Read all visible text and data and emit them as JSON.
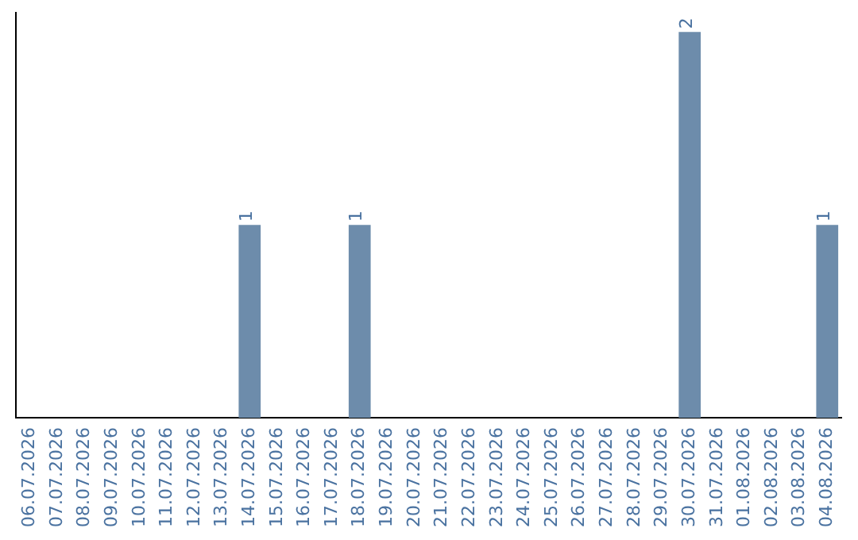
{
  "chart_data": {
    "type": "bar",
    "categories": [
      "06.07.2026",
      "07.07.2026",
      "08.07.2026",
      "09.07.2026",
      "10.07.2026",
      "11.07.2026",
      "12.07.2026",
      "13.07.2026",
      "14.07.2026",
      "15.07.2026",
      "16.07.2026",
      "17.07.2026",
      "18.07.2026",
      "19.07.2026",
      "20.07.2026",
      "21.07.2026",
      "22.07.2026",
      "23.07.2026",
      "24.07.2026",
      "25.07.2026",
      "26.07.2026",
      "27.07.2026",
      "28.07.2026",
      "29.07.2026",
      "30.07.2026",
      "31.07.2026",
      "01.08.2026",
      "02.08.2026",
      "03.08.2026",
      "04.08.2026"
    ],
    "values": [
      0,
      0,
      0,
      0,
      0,
      0,
      0,
      0,
      1,
      0,
      0,
      0,
      1,
      0,
      0,
      0,
      0,
      0,
      0,
      0,
      0,
      0,
      0,
      0,
      2,
      0,
      0,
      0,
      0,
      1
    ],
    "value_labels": [
      null,
      null,
      null,
      null,
      null,
      null,
      null,
      null,
      "1",
      null,
      null,
      null,
      "1",
      null,
      null,
      null,
      null,
      null,
      null,
      null,
      null,
      null,
      null,
      null,
      "2",
      null,
      null,
      null,
      null,
      "1"
    ],
    "color": "#6d8cab",
    "ylim": [
      0,
      2.1
    ],
    "tick_labels": "x",
    "grid": false,
    "legend": false
  }
}
